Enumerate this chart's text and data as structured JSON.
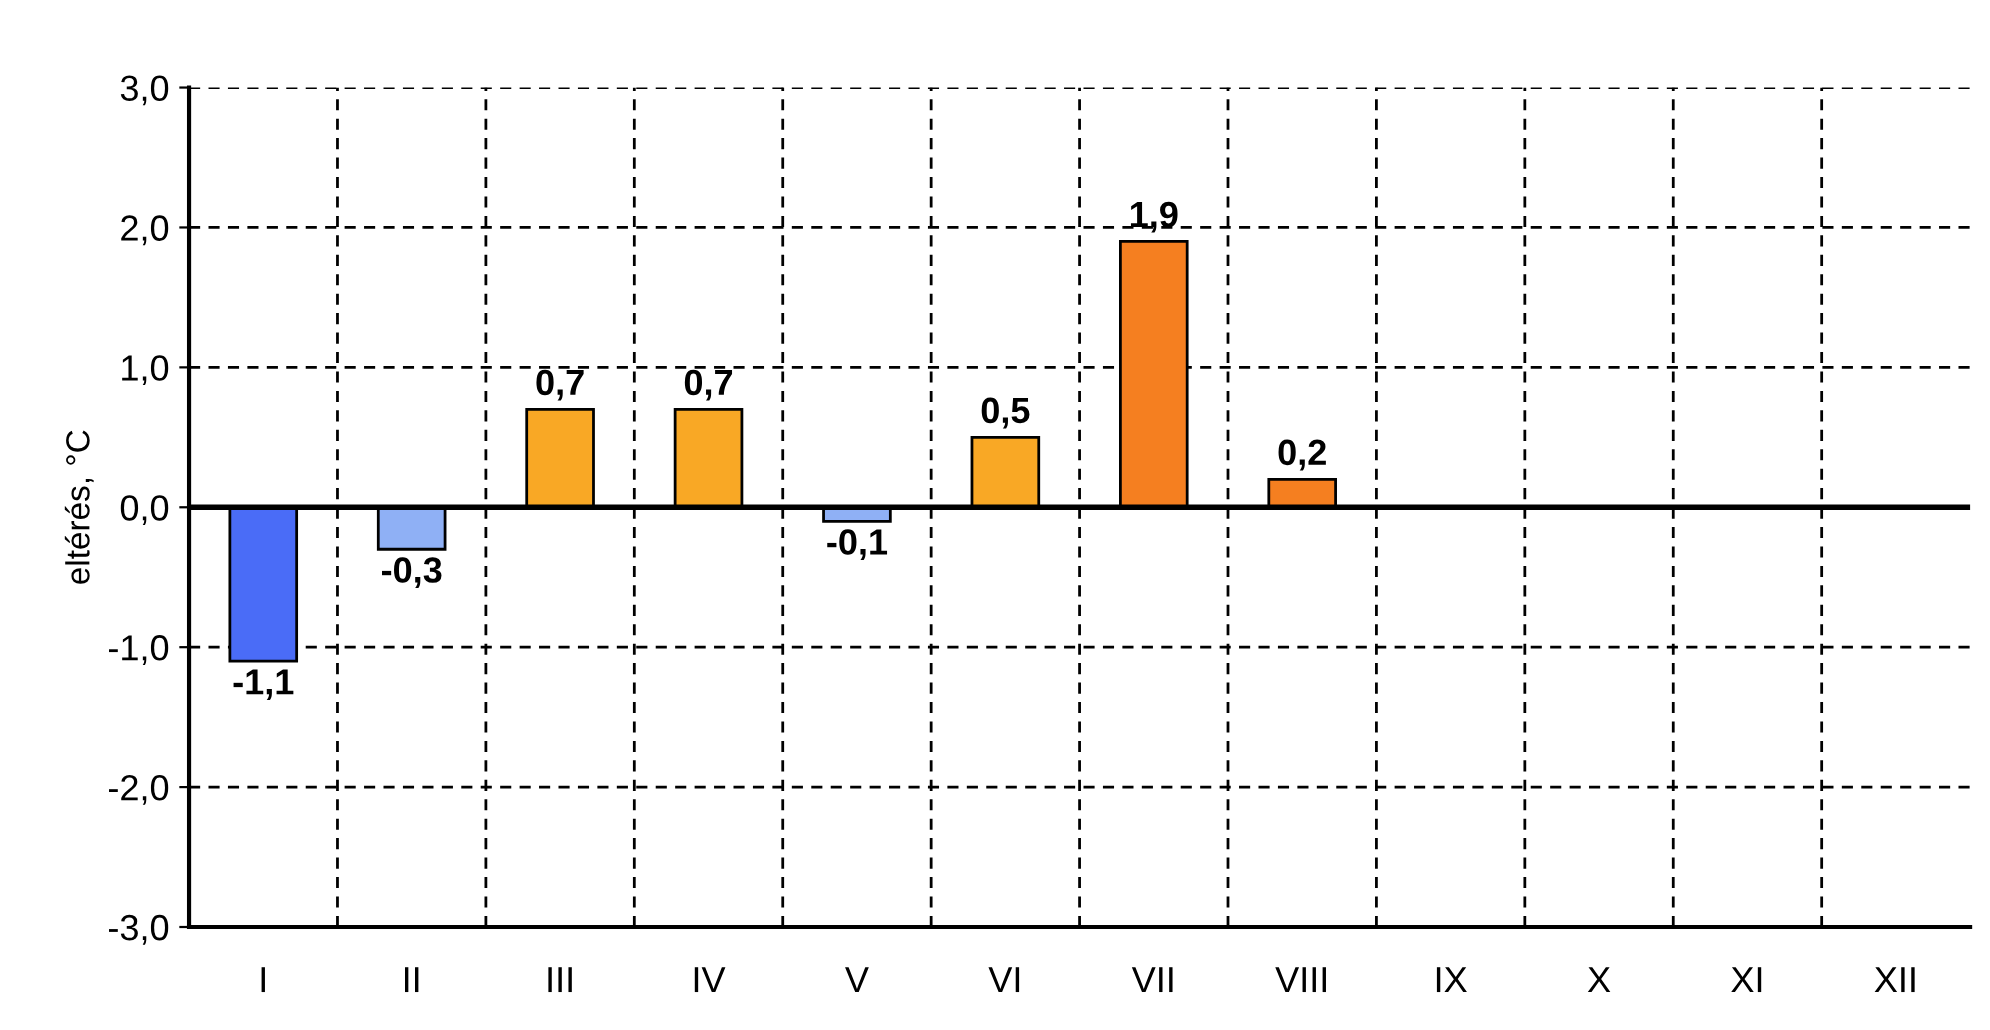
{
  "chart_data": {
    "type": "bar",
    "ylabel": "eltérés, °C",
    "categories": [
      "I",
      "II",
      "III",
      "IV",
      "V",
      "VI",
      "VII",
      "VIII",
      "IX",
      "X",
      "XI",
      "XII"
    ],
    "values": [
      -1.1,
      -0.3,
      0.7,
      0.7,
      -0.1,
      0.5,
      1.9,
      0.2,
      null,
      null,
      null,
      null
    ],
    "colors": [
      "#4a6cf7",
      "#8fb0f5",
      "#f9a825",
      "#f9a825",
      "#8fb0f5",
      "#f9a825",
      "#f57f20",
      "#f57f20",
      null,
      null,
      null,
      null
    ],
    "value_labels": [
      "-1,1",
      "-0,3",
      "0,7",
      "0,7",
      "-0,1",
      "0,5",
      "1,9",
      "0,2",
      null,
      null,
      null,
      null
    ],
    "ylim": [
      -3,
      3
    ],
    "yticks": [
      {
        "value": -3,
        "label": "-3,0"
      },
      {
        "value": -2,
        "label": "-2,0"
      },
      {
        "value": -1,
        "label": "-1,0"
      },
      {
        "value": 0,
        "label": "0,0"
      },
      {
        "value": 1,
        "label": "1,0"
      },
      {
        "value": 2,
        "label": "2,0"
      },
      {
        "value": 3,
        "label": "3,0"
      }
    ],
    "ref_lines": [
      {
        "axis": "y",
        "value": 0,
        "color": "#000000"
      }
    ],
    "grid": true
  }
}
